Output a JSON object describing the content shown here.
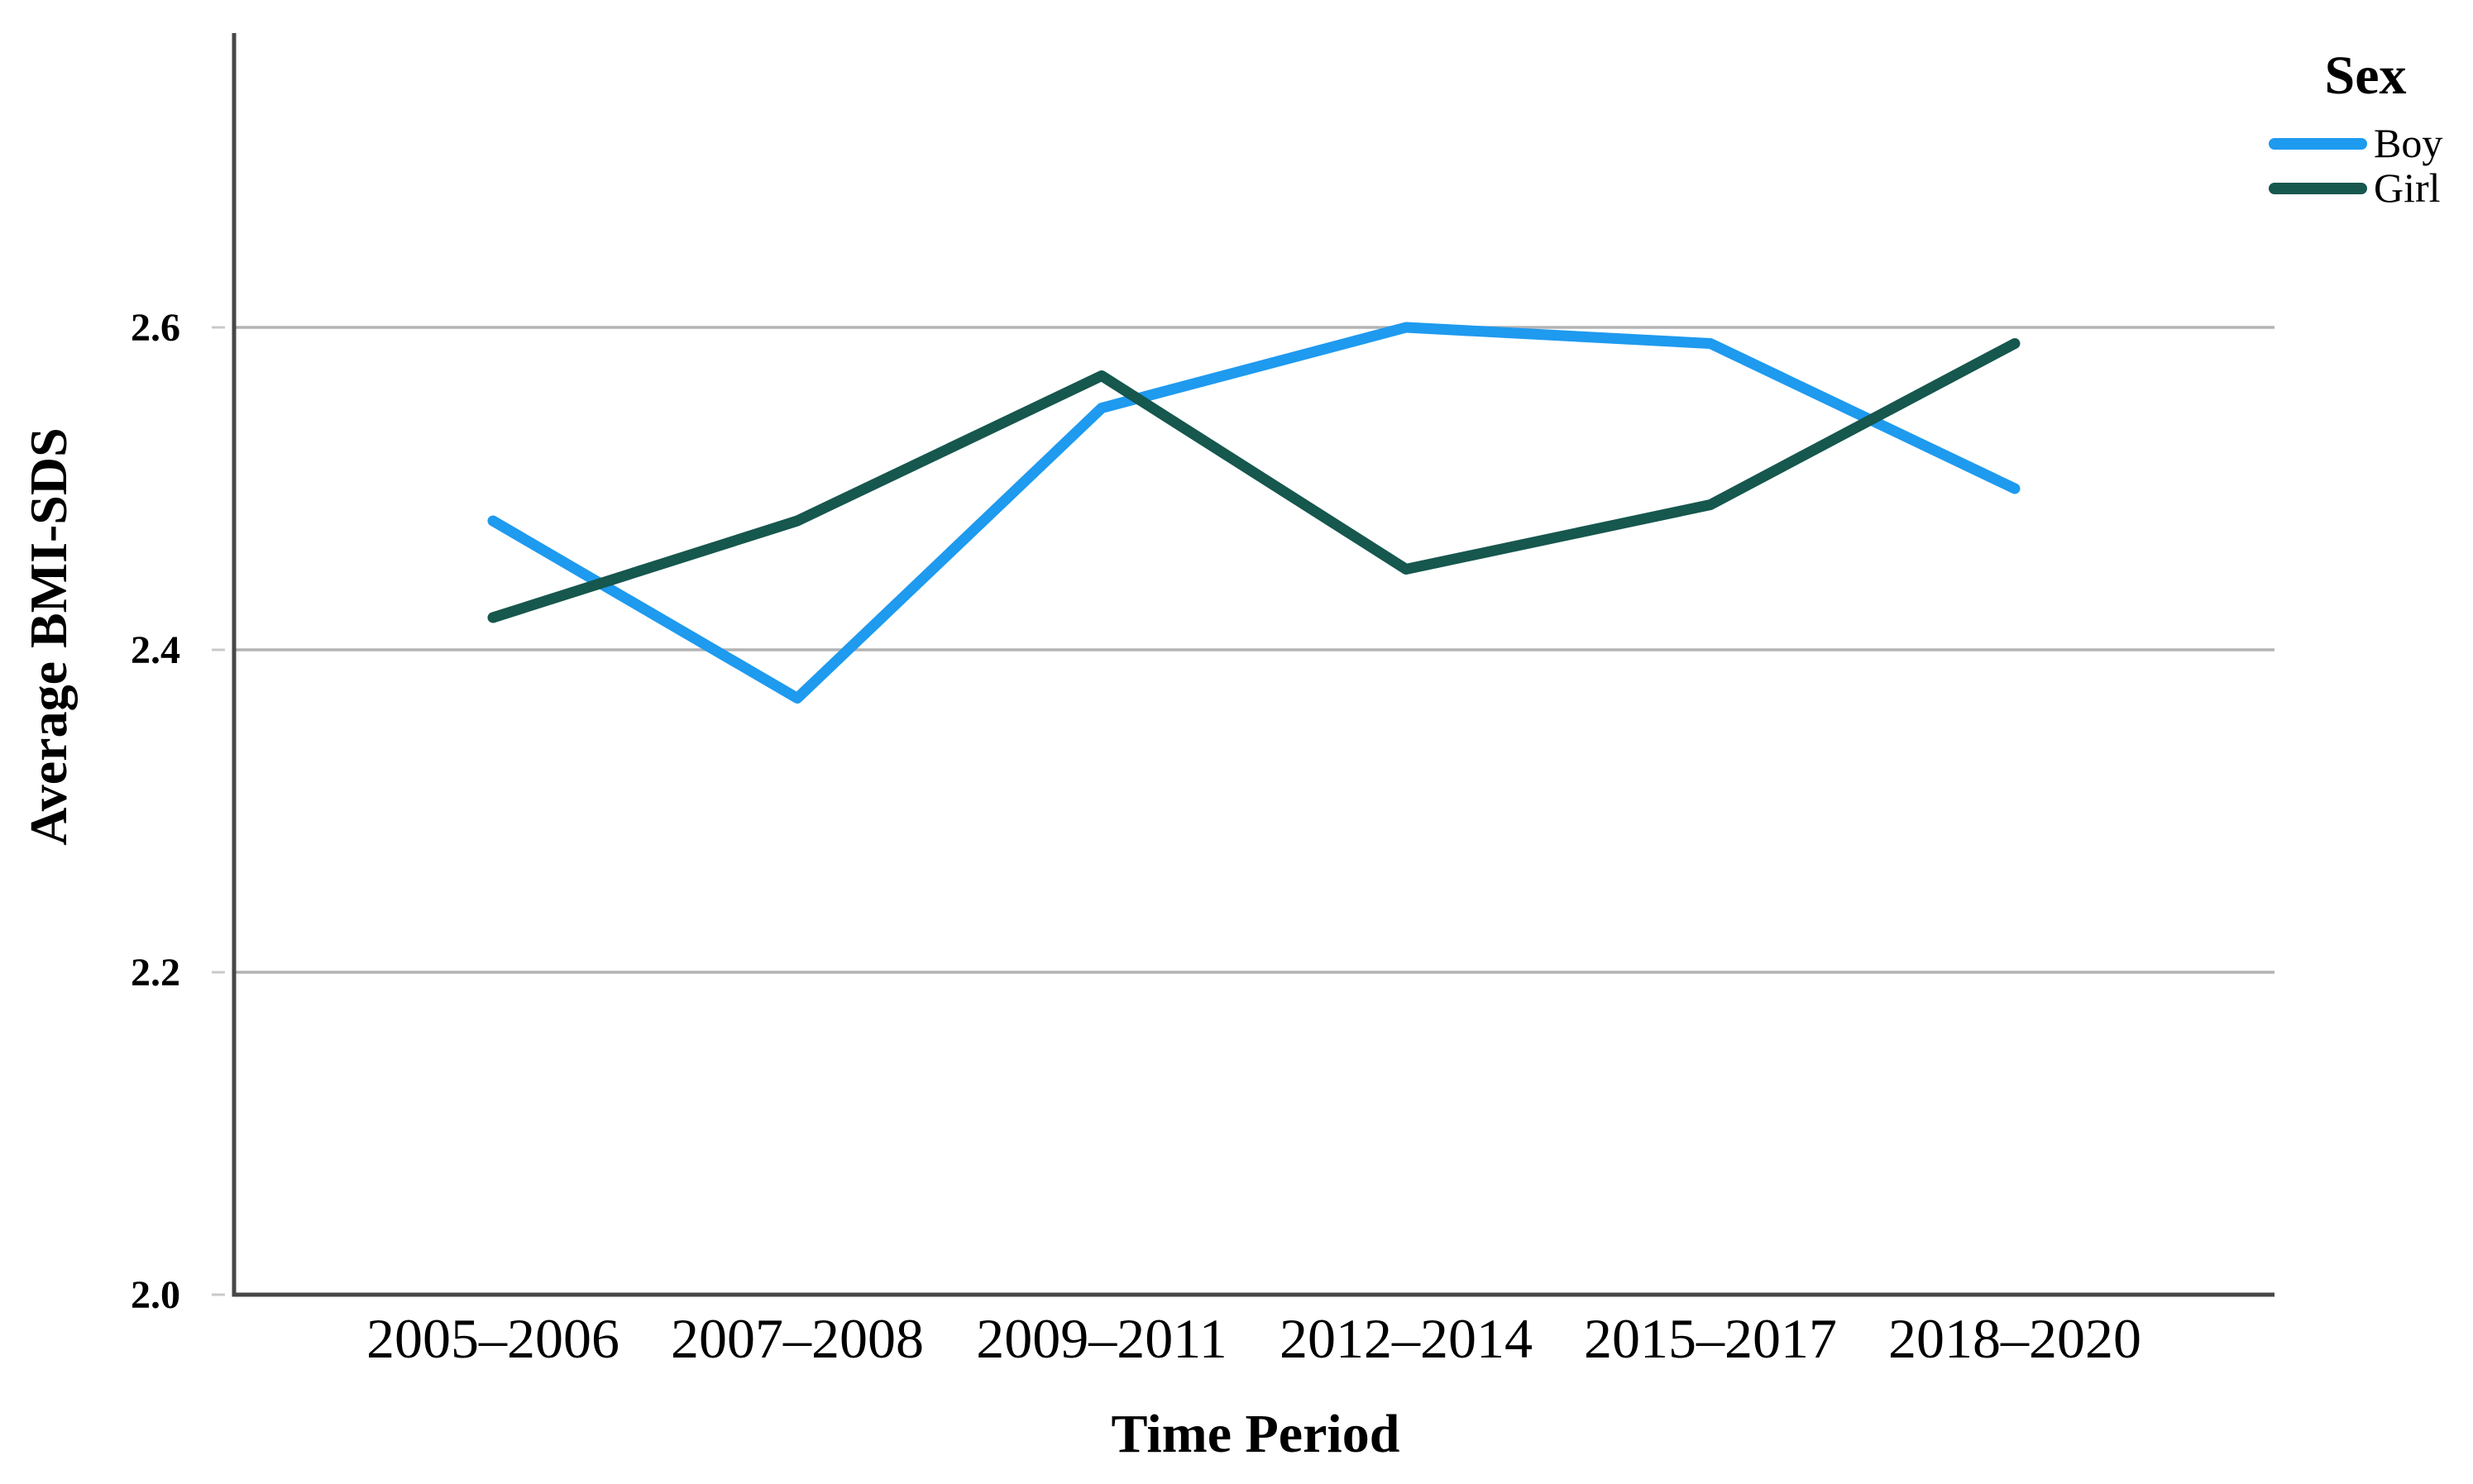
{
  "chart_data": {
    "type": "line",
    "title": "",
    "categories": [
      "2005–2006",
      "2007–2008",
      "2009–2011",
      "2012–2014",
      "2015–2017",
      "2018–2020"
    ],
    "series": [
      {
        "name": "Boy",
        "color": "#1E9AEF",
        "values": [
          2.48,
          2.37,
          2.55,
          2.6,
          2.59,
          2.5
        ]
      },
      {
        "name": "Girl",
        "color": "#16574E",
        "values": [
          2.42,
          2.48,
          2.57,
          2.45,
          2.49,
          2.59
        ]
      }
    ],
    "xlabel": "Time Period",
    "ylabel": "Average BMI-SDS",
    "legend_title": "Sex",
    "legend_position": "top-right",
    "ylim": [
      2.0,
      2.78
    ],
    "yticks": [
      2.0,
      2.2,
      2.4,
      2.6
    ],
    "ytick_labels": [
      "2.0",
      "2.2",
      "2.4",
      "2.6"
    ],
    "grid": "horizontal",
    "gridline_color": "#b3b3b3",
    "tick_mark_color": "#c9c9c9",
    "axis_color": "#474747",
    "text_color": "#000000"
  }
}
